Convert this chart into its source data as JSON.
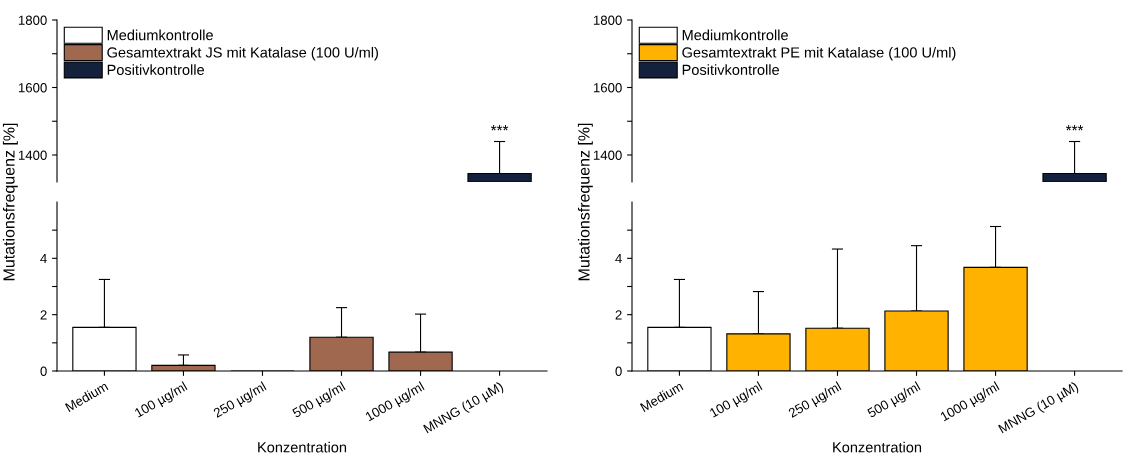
{
  "chart_data": [
    {
      "type": "bar",
      "categories": [
        "Medium",
        "100 µg/ml",
        "250 µg/ml",
        "500 µg/ml",
        "1000 µg/ml",
        "MNNG (10 µM)"
      ],
      "ylim": [
        1320,
        1800
      ],
      "yticks": [
        1400,
        {
          "value": 1500,
          "label": null
        },
        1600,
        {
          "value": 1700,
          "label": null
        },
        1800
      ],
      "tick_labels": "y",
      "legend": "top left",
      "grid": false,
      "annotations": [
        {
          "text": "***",
          "x": "MNNG (10 µM)",
          "y": 1440
        }
      ],
      "series": [
        {
          "name": "Mediumkontrolle",
          "color": "#ffffff",
          "values": [
            null,
            null,
            null,
            null,
            null,
            null
          ]
        },
        {
          "name": "Gesamtextrakt JS mit Katalase (100 U/ml)",
          "color": "#a0694f",
          "values": [
            null,
            null,
            null,
            null,
            null,
            null
          ]
        },
        {
          "name": "Positivkontrolle",
          "color": "#14213d",
          "values": [
            null,
            null,
            null,
            null,
            null,
            1345
          ],
          "errors": [
            null,
            null,
            null,
            null,
            null,
            [
              1345,
              1440
            ]
          ]
        }
      ]
    },
    {
      "type": "bar",
      "categories": [
        "Medium",
        "100 µg/ml",
        "250 µg/ml",
        "500 µg/ml",
        "1000 µg/ml",
        "MNNG (10 µM)"
      ],
      "ylim": [
        1320,
        1800
      ],
      "yticks": [
        1400,
        {
          "value": 1500,
          "label": null
        },
        1600,
        {
          "value": 1700,
          "label": null
        },
        1800
      ],
      "tick_labels": "y",
      "legend": "top left",
      "grid": false,
      "annotations": [
        {
          "text": "***",
          "x": "MNNG (10 µM)",
          "y": 1440
        }
      ],
      "series": [
        {
          "name": "Mediumkontrolle",
          "color": "#ffffff",
          "values": [
            null,
            null,
            null,
            null,
            null,
            null
          ]
        },
        {
          "name": "Gesamtextrakt PE mit Katalase (100 U/ml)",
          "color": "#ffb300",
          "values": [
            null,
            null,
            null,
            null,
            null,
            null
          ]
        },
        {
          "name": "Positivkontrolle",
          "color": "#14213d",
          "values": [
            null,
            null,
            null,
            null,
            null,
            1345
          ],
          "errors": [
            null,
            null,
            null,
            null,
            null,
            [
              1345,
              1440
            ]
          ]
        }
      ]
    },
    {
      "type": "bar",
      "categories": [
        "Medium",
        "100 µg/ml",
        "250 µg/ml",
        "500 µg/ml",
        "1000 µg/ml",
        "MNNG (10 µM)"
      ],
      "ylim": [
        0,
        6
      ],
      "yticks": [
        0,
        {
          "value": 1,
          "label": null
        },
        2,
        {
          "value": 3,
          "label": null
        },
        4,
        {
          "value": 5,
          "label": null
        }
      ],
      "xlabel": "Konzentration",
      "ylabel": "Mutationsfrequenz [%]",
      "grid": false,
      "series": [
        {
          "color": "#ffffff",
          "values": [
            1.55,
            null,
            null,
            null,
            null,
            null
          ],
          "errors": [
            [
              1.55,
              3.25
            ],
            null,
            null,
            null,
            null,
            null
          ]
        },
        {
          "color": "#a0694f",
          "values": [
            null,
            0.2,
            0,
            1.2,
            0.67,
            null
          ],
          "errors": [
            null,
            [
              0.2,
              0.57
            ],
            null,
            [
              1.2,
              2.25
            ],
            [
              0.67,
              2.02
            ],
            null
          ]
        }
      ]
    },
    {
      "type": "bar",
      "categories": [
        "Medium",
        "100 µg/ml",
        "250 µg/ml",
        "500 µg/ml",
        "1000 µg/ml",
        "MNNG (10 µM)"
      ],
      "ylim": [
        0,
        6
      ],
      "yticks": [
        0,
        {
          "value": 1,
          "label": null
        },
        2,
        {
          "value": 3,
          "label": null
        },
        4,
        {
          "value": 5,
          "label": null
        }
      ],
      "xlabel": "Konzentration",
      "ylabel": "Mutationsfrequenz [%]",
      "grid": false,
      "series": [
        {
          "color": "#ffffff",
          "values": [
            1.55,
            null,
            null,
            null,
            null,
            null
          ],
          "errors": [
            [
              1.55,
              3.25
            ],
            null,
            null,
            null,
            null,
            null
          ]
        },
        {
          "color": "#ffb300",
          "values": [
            null,
            1.32,
            1.52,
            2.13,
            3.68,
            null
          ],
          "errors": [
            null,
            [
              1.32,
              2.82
            ],
            [
              1.52,
              4.33
            ],
            [
              2.13,
              4.45
            ],
            [
              3.68,
              5.13
            ],
            null
          ]
        }
      ]
    }
  ]
}
